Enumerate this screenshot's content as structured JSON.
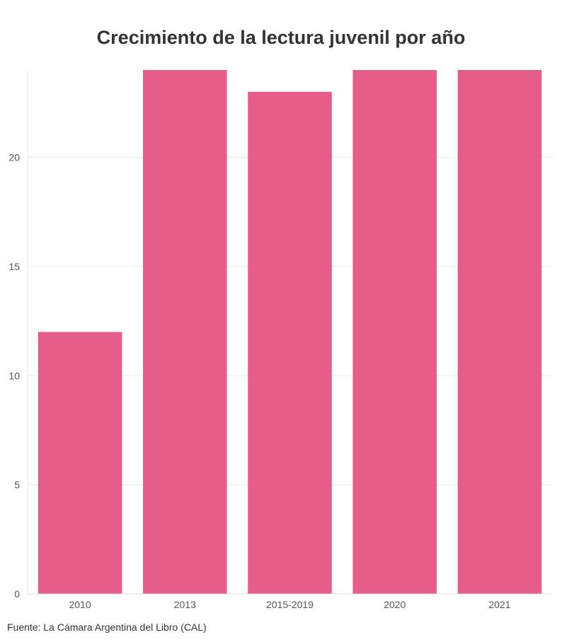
{
  "chart_data": {
    "type": "bar",
    "title": "Crecimiento de la lectura juvenil por año",
    "categories": [
      "2010",
      "2013",
      "2015-2019",
      "2020",
      "2021"
    ],
    "values": [
      12,
      24,
      23,
      24,
      24
    ],
    "xlabel": "",
    "ylabel": "",
    "ylim": [
      0,
      24
    ],
    "yticks": [
      0,
      5,
      10,
      15,
      20
    ],
    "grid": true,
    "bar_color": "#e75d8a"
  },
  "source": "Fuente: La Cámara Argentina del Libro (CAL)"
}
